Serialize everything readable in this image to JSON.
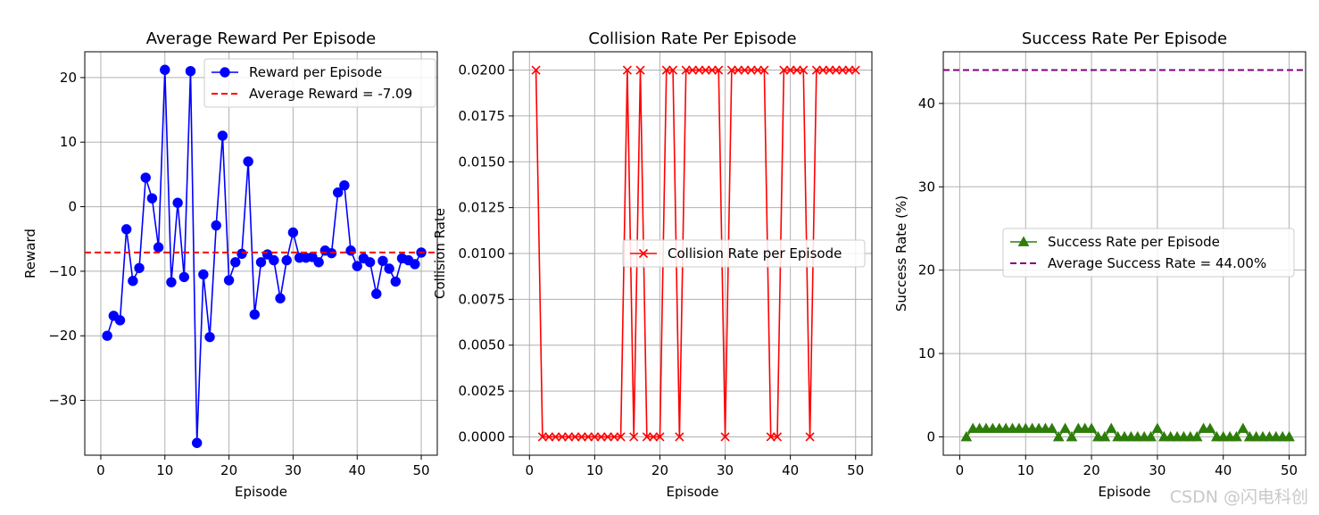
{
  "watermark": "CSDN @闪电科创",
  "chart_data": [
    {
      "type": "line",
      "title": "Average Reward Per Episode",
      "xlabel": "Episode",
      "ylabel": "Reward",
      "xlim": [
        -2.5,
        52.5
      ],
      "ylim": [
        -38.5,
        24
      ],
      "xticks": [
        0,
        10,
        20,
        30,
        40,
        50
      ],
      "yticks": [
        -30,
        -20,
        -10,
        0,
        10,
        20
      ],
      "grid": true,
      "legend_position": "upper right",
      "series": [
        {
          "name": "Reward per Episode",
          "color": "#0000ff",
          "marker": "circle",
          "x": [
            1,
            2,
            3,
            4,
            5,
            6,
            7,
            8,
            9,
            10,
            11,
            12,
            13,
            14,
            15,
            16,
            17,
            18,
            19,
            20,
            21,
            22,
            23,
            24,
            25,
            26,
            27,
            28,
            29,
            30,
            31,
            32,
            33,
            34,
            35,
            36,
            37,
            38,
            39,
            40,
            41,
            42,
            43,
            44,
            45,
            46,
            47,
            48,
            49,
            50
          ],
          "y": [
            -20,
            -16.9,
            -17.6,
            -3.5,
            -11.5,
            -9.5,
            4.5,
            1.3,
            -6.3,
            21.2,
            -11.7,
            0.6,
            -10.9,
            21,
            -36.6,
            -10.5,
            -20.2,
            -2.9,
            11,
            -11.4,
            -8.6,
            -7.3,
            7,
            -16.7,
            -8.6,
            -7.4,
            -8.3,
            -14.2,
            -8.3,
            -4,
            -7.9,
            -7.9,
            -7.8,
            -8.6,
            -6.8,
            -7.2,
            2.2,
            3.3,
            -6.8,
            -9.2,
            -8,
            -8.6,
            -13.5,
            -8.4,
            -9.6,
            -11.6,
            -8,
            -8.3,
            -8.9,
            -7.1
          ]
        },
        {
          "name": "Average Reward = -7.09",
          "color": "#ff0000",
          "style": "dashed",
          "value": -7.09
        }
      ]
    },
    {
      "type": "line",
      "title": "Collision Rate Per Episode",
      "xlabel": "Episode",
      "ylabel": "Collision Rate",
      "xlim": [
        -2.5,
        52.5
      ],
      "ylim": [
        -0.001,
        0.021
      ],
      "xticks": [
        0,
        10,
        20,
        30,
        40,
        50
      ],
      "yticks": [
        "0.0000",
        "0.0025",
        "0.0050",
        "0.0075",
        "0.0100",
        "0.0125",
        "0.0150",
        "0.0175",
        "0.0200"
      ],
      "grid": true,
      "legend_position": "center right",
      "series": [
        {
          "name": "Collision Rate per Episode",
          "color": "#ff0000",
          "marker": "x",
          "x": [
            1,
            2,
            3,
            4,
            5,
            6,
            7,
            8,
            9,
            10,
            11,
            12,
            13,
            14,
            15,
            16,
            17,
            18,
            19,
            20,
            21,
            22,
            23,
            24,
            25,
            26,
            27,
            28,
            29,
            30,
            31,
            32,
            33,
            34,
            35,
            36,
            37,
            38,
            39,
            40,
            41,
            42,
            43,
            44,
            45,
            46,
            47,
            48,
            49,
            50
          ],
          "y": [
            0.02,
            0,
            0,
            0,
            0,
            0,
            0,
            0,
            0,
            0,
            0,
            0,
            0,
            0,
            0.02,
            0,
            0.02,
            0,
            0,
            0,
            0.02,
            0.02,
            0,
            0.02,
            0.02,
            0.02,
            0.02,
            0.02,
            0.02,
            0,
            0.02,
            0.02,
            0.02,
            0.02,
            0.02,
            0.02,
            0,
            0,
            0.02,
            0.02,
            0.02,
            0.02,
            0,
            0.02,
            0.02,
            0.02,
            0.02,
            0.02,
            0.02,
            0.02
          ]
        }
      ]
    },
    {
      "type": "line",
      "title": "Success Rate Per Episode",
      "xlabel": "Episode",
      "ylabel": "Success Rate (%)",
      "xlim": [
        -2.5,
        52.5
      ],
      "ylim": [
        -2.2,
        46.2
      ],
      "xticks": [
        0,
        10,
        20,
        30,
        40,
        50
      ],
      "yticks": [
        0,
        10,
        20,
        30,
        40
      ],
      "grid": true,
      "legend_position": "center right",
      "series": [
        {
          "name": "Success Rate per Episode",
          "color": "#2e7d0a",
          "marker": "triangle",
          "x": [
            1,
            2,
            3,
            4,
            5,
            6,
            7,
            8,
            9,
            10,
            11,
            12,
            13,
            14,
            15,
            16,
            17,
            18,
            19,
            20,
            21,
            22,
            23,
            24,
            25,
            26,
            27,
            28,
            29,
            30,
            31,
            32,
            33,
            34,
            35,
            36,
            37,
            38,
            39,
            40,
            41,
            42,
            43,
            44,
            45,
            46,
            47,
            48,
            49,
            50
          ],
          "y": [
            0,
            1,
            1,
            1,
            1,
            1,
            1,
            1,
            1,
            1,
            1,
            1,
            1,
            1,
            0,
            1,
            0,
            1,
            1,
            1,
            0,
            0,
            1,
            0,
            0,
            0,
            0,
            0,
            0,
            1,
            0,
            0,
            0,
            0,
            0,
            0,
            1,
            1,
            0,
            0,
            0,
            0,
            1,
            0,
            0,
            0,
            0,
            0,
            0,
            0
          ]
        },
        {
          "name": "Average Success Rate = 44.00%",
          "color": "#800080",
          "style": "dashed",
          "value": 44
        }
      ]
    }
  ]
}
